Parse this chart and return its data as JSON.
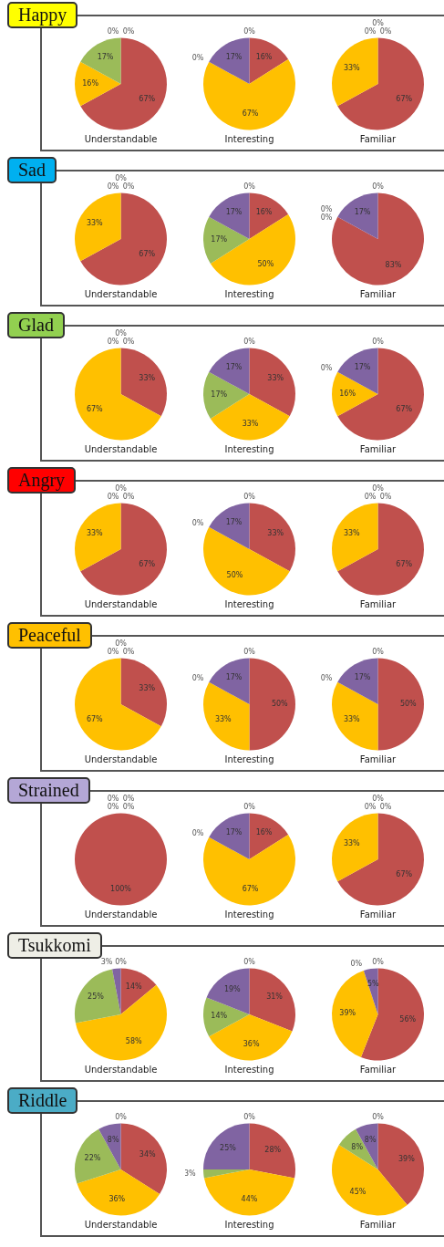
{
  "chart_data": [
    {
      "type": "pie",
      "title": "Happy",
      "xlabel": "Understandable",
      "categories": [
        null,
        null,
        null,
        null,
        null
      ],
      "values": [
        67,
        16,
        17,
        0,
        0
      ],
      "value_labels": [
        "67%",
        "16%",
        "17%",
        "0%",
        "0%"
      ],
      "colors": [
        "#c0504d",
        "#ffc000",
        "#9bbb59",
        "#8064a2",
        "#4f81bd"
      ]
    },
    {
      "type": "pie",
      "xlabel": "Interesting",
      "categories": [
        null,
        null,
        null,
        null,
        null
      ],
      "values": [
        16,
        67,
        0,
        17,
        0
      ],
      "value_labels": [
        "16%",
        "67%",
        "0%",
        "17%",
        "0%"
      ],
      "colors": [
        "#c0504d",
        "#ffc000",
        "#9bbb59",
        "#8064a2",
        "#4f81bd"
      ]
    },
    {
      "type": "pie",
      "xlabel": "Familiar",
      "categories": [
        null,
        null,
        null,
        null,
        null
      ],
      "values": [
        67,
        33,
        0,
        0,
        0
      ],
      "value_labels": [
        "67%",
        "33%",
        "0%",
        "0%",
        "0%"
      ],
      "colors": [
        "#c0504d",
        "#ffc000",
        "#9bbb59",
        "#8064a2",
        "#4f81bd"
      ]
    },
    {
      "type": "pie",
      "title": "Sad",
      "xlabel": "Understandable",
      "categories": [
        null,
        null,
        null,
        null,
        null
      ],
      "values": [
        67,
        33,
        0,
        0,
        0
      ],
      "value_labels": [
        "67%",
        "33%",
        "0%",
        "0%",
        "0%"
      ],
      "colors": [
        "#c0504d",
        "#ffc000",
        "#9bbb59",
        "#8064a2",
        "#4f81bd"
      ]
    },
    {
      "type": "pie",
      "xlabel": "Interesting",
      "categories": [
        null,
        null,
        null,
        null,
        null
      ],
      "values": [
        16,
        50,
        17,
        17,
        0
      ],
      "value_labels": [
        "16%",
        "50%",
        "17%",
        "17%",
        "0%"
      ],
      "colors": [
        "#c0504d",
        "#ffc000",
        "#9bbb59",
        "#8064a2",
        "#4f81bd"
      ]
    },
    {
      "type": "pie",
      "xlabel": "Familiar",
      "categories": [
        null,
        null,
        null,
        null,
        null
      ],
      "values": [
        83,
        0,
        0,
        17,
        0
      ],
      "value_labels": [
        "83%",
        "0%",
        "0%",
        "17%",
        "0%"
      ],
      "colors": [
        "#c0504d",
        "#ffc000",
        "#9bbb59",
        "#8064a2",
        "#4f81bd"
      ]
    },
    {
      "type": "pie",
      "title": "Glad",
      "xlabel": "Understandable",
      "categories": [
        null,
        null,
        null,
        null,
        null
      ],
      "values": [
        33,
        67,
        0,
        0,
        0
      ],
      "value_labels": [
        "33%",
        "67%",
        "0%",
        "0%",
        "0%"
      ],
      "colors": [
        "#c0504d",
        "#ffc000",
        "#9bbb59",
        "#8064a2",
        "#4f81bd"
      ]
    },
    {
      "type": "pie",
      "xlabel": "Interesting",
      "categories": [
        null,
        null,
        null,
        null,
        null
      ],
      "values": [
        33,
        33,
        17,
        17,
        0
      ],
      "value_labels": [
        "33%",
        "33%",
        "17%",
        "17%",
        "0%"
      ],
      "colors": [
        "#c0504d",
        "#ffc000",
        "#9bbb59",
        "#8064a2",
        "#4f81bd"
      ]
    },
    {
      "type": "pie",
      "xlabel": "Familiar",
      "categories": [
        null,
        null,
        null,
        null,
        null
      ],
      "values": [
        67,
        16,
        0,
        17,
        0
      ],
      "value_labels": [
        "67%",
        "16%",
        "0%",
        "17%",
        "0%"
      ],
      "colors": [
        "#c0504d",
        "#ffc000",
        "#9bbb59",
        "#8064a2",
        "#4f81bd"
      ]
    },
    {
      "type": "pie",
      "title": "Angry",
      "xlabel": "Understandable",
      "categories": [
        null,
        null,
        null,
        null,
        null
      ],
      "values": [
        67,
        33,
        0,
        0,
        0
      ],
      "value_labels": [
        "67%",
        "33%",
        "0%",
        "0%",
        "0%"
      ],
      "colors": [
        "#c0504d",
        "#ffc000",
        "#9bbb59",
        "#8064a2",
        "#4f81bd"
      ]
    },
    {
      "type": "pie",
      "xlabel": "Interesting",
      "categories": [
        null,
        null,
        null,
        null,
        null
      ],
      "values": [
        33,
        50,
        0,
        17,
        0
      ],
      "value_labels": [
        "33%",
        "50%",
        "0%",
        "17%",
        "0%"
      ],
      "colors": [
        "#c0504d",
        "#ffc000",
        "#9bbb59",
        "#8064a2",
        "#4f81bd"
      ]
    },
    {
      "type": "pie",
      "xlabel": "Familiar",
      "categories": [
        null,
        null,
        null,
        null,
        null
      ],
      "values": [
        67,
        33,
        0,
        0,
        0
      ],
      "value_labels": [
        "67%",
        "33%",
        "0%",
        "0%",
        "0%"
      ],
      "colors": [
        "#c0504d",
        "#ffc000",
        "#9bbb59",
        "#8064a2",
        "#4f81bd"
      ]
    },
    {
      "type": "pie",
      "title": "Peaceful",
      "xlabel": "Understandable",
      "categories": [
        null,
        null,
        null,
        null,
        null
      ],
      "values": [
        33,
        67,
        0,
        0,
        0
      ],
      "value_labels": [
        "33%",
        "67%",
        "0%",
        "0%",
        "0%"
      ],
      "colors": [
        "#c0504d",
        "#ffc000",
        "#9bbb59",
        "#8064a2",
        "#4f81bd"
      ]
    },
    {
      "type": "pie",
      "xlabel": "Interesting",
      "categories": [
        null,
        null,
        null,
        null,
        null
      ],
      "values": [
        50,
        33,
        0,
        17,
        0
      ],
      "value_labels": [
        "50%",
        "33%",
        "0%",
        "17%",
        "0%"
      ],
      "colors": [
        "#c0504d",
        "#ffc000",
        "#9bbb59",
        "#8064a2",
        "#4f81bd"
      ]
    },
    {
      "type": "pie",
      "xlabel": "Familiar",
      "categories": [
        null,
        null,
        null,
        null,
        null
      ],
      "values": [
        50,
        33,
        0,
        17,
        0
      ],
      "value_labels": [
        "50%",
        "33%",
        "0%",
        "17%",
        "0%"
      ],
      "colors": [
        "#c0504d",
        "#ffc000",
        "#9bbb59",
        "#8064a2",
        "#4f81bd"
      ]
    },
    {
      "type": "pie",
      "title": "Strained",
      "xlabel": "Understandable",
      "categories": [
        null,
        null,
        null,
        null,
        null
      ],
      "values": [
        100,
        0,
        0,
        0,
        0
      ],
      "value_labels": [
        "100%",
        "0%",
        "0%",
        "0%",
        "0%"
      ],
      "colors": [
        "#c0504d",
        "#ffc000",
        "#9bbb59",
        "#8064a2",
        "#4f81bd"
      ]
    },
    {
      "type": "pie",
      "xlabel": "Interesting",
      "categories": [
        null,
        null,
        null,
        null,
        null
      ],
      "values": [
        16,
        67,
        0,
        17,
        0
      ],
      "value_labels": [
        "16%",
        "67%",
        "0%",
        "17%",
        "0%"
      ],
      "colors": [
        "#c0504d",
        "#ffc000",
        "#9bbb59",
        "#8064a2",
        "#4f81bd"
      ]
    },
    {
      "type": "pie",
      "xlabel": "Familiar",
      "categories": [
        null,
        null,
        null,
        null,
        null
      ],
      "values": [
        67,
        33,
        0,
        0,
        0
      ],
      "value_labels": [
        "67%",
        "33%",
        "0%",
        "0%",
        "0%"
      ],
      "colors": [
        "#c0504d",
        "#ffc000",
        "#9bbb59",
        "#8064a2",
        "#4f81bd"
      ]
    },
    {
      "type": "pie",
      "title": "Tsukkomi",
      "xlabel": "Understandable",
      "categories": [
        null,
        null,
        null,
        null,
        null
      ],
      "values": [
        14,
        58,
        25,
        3,
        0
      ],
      "value_labels": [
        "14%",
        "58%",
        "25%",
        "3%",
        "0%"
      ],
      "colors": [
        "#c0504d",
        "#ffc000",
        "#9bbb59",
        "#8064a2",
        "#4f81bd"
      ]
    },
    {
      "type": "pie",
      "xlabel": "Interesting",
      "categories": [
        null,
        null,
        null,
        null,
        null
      ],
      "values": [
        31,
        36,
        14,
        19,
        0
      ],
      "value_labels": [
        "31%",
        "36%",
        "14%",
        "19%",
        "0%"
      ],
      "colors": [
        "#c0504d",
        "#ffc000",
        "#9bbb59",
        "#8064a2",
        "#4f81bd"
      ]
    },
    {
      "type": "pie",
      "xlabel": "Familiar",
      "categories": [
        null,
        null,
        null,
        null,
        null
      ],
      "values": [
        56,
        39,
        0,
        5,
        0
      ],
      "value_labels": [
        "56%",
        "39%",
        "0%",
        "5%",
        "0%"
      ],
      "colors": [
        "#c0504d",
        "#ffc000",
        "#9bbb59",
        "#8064a2",
        "#4f81bd"
      ]
    },
    {
      "type": "pie",
      "title": "Riddle",
      "xlabel": "Understandable",
      "categories": [
        null,
        null,
        null,
        null,
        null
      ],
      "values": [
        34,
        36,
        22,
        8,
        0
      ],
      "value_labels": [
        "34%",
        "36%",
        "22%",
        "8%",
        "0%"
      ],
      "colors": [
        "#c0504d",
        "#ffc000",
        "#9bbb59",
        "#8064a2",
        "#4f81bd"
      ]
    },
    {
      "type": "pie",
      "xlabel": "Interesting",
      "categories": [
        null,
        null,
        null,
        null,
        null
      ],
      "values": [
        28,
        44,
        3,
        25,
        0
      ],
      "value_labels": [
        "28%",
        "44%",
        "3%",
        "25%",
        "0%"
      ],
      "colors": [
        "#c0504d",
        "#ffc000",
        "#9bbb59",
        "#8064a2",
        "#4f81bd"
      ]
    },
    {
      "type": "pie",
      "xlabel": "Familiar",
      "categories": [
        null,
        null,
        null,
        null,
        null
      ],
      "values": [
        39,
        45,
        8,
        8,
        0
      ],
      "value_labels": [
        "39%",
        "45%",
        "8%",
        "8%",
        "0%"
      ],
      "colors": [
        "#c0504d",
        "#ffc000",
        "#9bbb59",
        "#8064a2",
        "#4f81bd"
      ]
    }
  ]
}
